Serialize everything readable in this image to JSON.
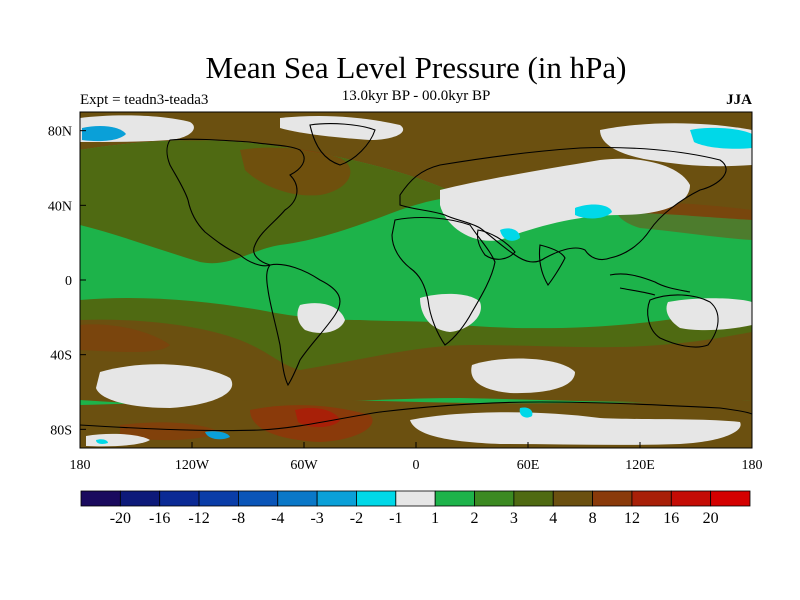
{
  "chart_data": {
    "type": "heatmap",
    "title": "Mean Sea Level Pressure (in hPa)",
    "subtitle": "13.0kyr BP - 00.0kyr BP",
    "left_label": "Expt = teadn3-teada3",
    "right_label": "JJA",
    "x_range": [
      -180,
      180
    ],
    "y_range": [
      -90,
      90
    ],
    "x_ticks": [
      {
        "value": -180,
        "label": "180"
      },
      {
        "value": -120,
        "label": "120W"
      },
      {
        "value": -60,
        "label": "60W"
      },
      {
        "value": 0,
        "label": "0"
      },
      {
        "value": 60,
        "label": "60E"
      },
      {
        "value": 120,
        "label": "120E"
      },
      {
        "value": 180,
        "label": "180"
      }
    ],
    "y_ticks": [
      {
        "value": 80,
        "label": "80N"
      },
      {
        "value": 40,
        "label": "40N"
      },
      {
        "value": 0,
        "label": "0"
      },
      {
        "value": -40,
        "label": "40S"
      },
      {
        "value": -80,
        "label": "80S"
      }
    ],
    "colorbar": {
      "labels": [
        "-20",
        "-16",
        "-12",
        "-8",
        "-4",
        "-3",
        "-2",
        "-1",
        "1",
        "2",
        "3",
        "4",
        "8",
        "12",
        "16",
        "20"
      ],
      "colors": [
        "#1a0a5e",
        "#0d1a7a",
        "#0b2a95",
        "#0a3da8",
        "#0a55b8",
        "#0a78c8",
        "#0aa0d8",
        "#00d8e8",
        "#e6e6e6",
        "#1db34a",
        "#3c8a22",
        "#4f6a12",
        "#6b5010",
        "#8a3a0a",
        "#a82008",
        "#c40c05",
        "#d40000"
      ]
    }
  }
}
